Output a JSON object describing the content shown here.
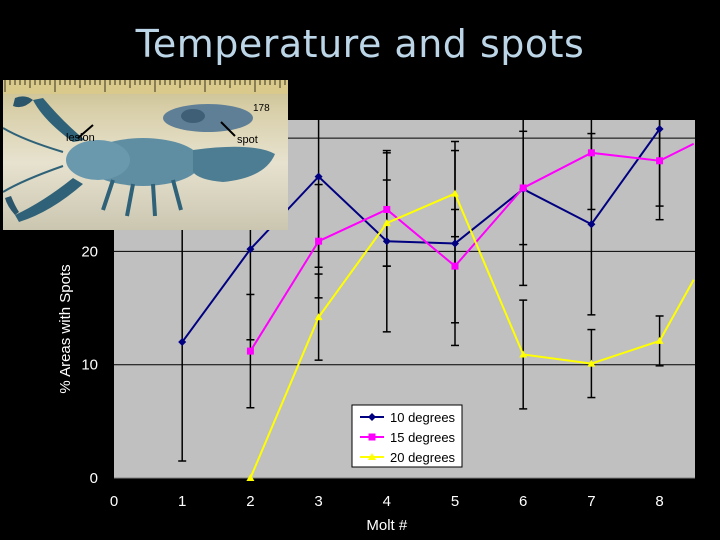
{
  "slide": {
    "title": "Temperature and spots"
  },
  "photo": {
    "lesion_label": "lesion",
    "spot_label": "spot",
    "ruler_number": "178"
  },
  "chart_data": {
    "type": "line",
    "title": "",
    "xlabel": "Molt #",
    "ylabel": "% Areas with Spots",
    "xlim": [
      0,
      8
    ],
    "ylim": [
      0,
      30
    ],
    "x_ticks": [
      "0",
      "1",
      "2",
      "3",
      "4",
      "5",
      "6",
      "7",
      "8"
    ],
    "y_ticks": [
      "0",
      "10",
      "20"
    ],
    "grid": "horizontal",
    "legend_position": "bottom-right",
    "colors": {
      "plot_background": "#c0c0c0",
      "gridline": "#000000"
    },
    "series": [
      {
        "name": "10 degrees",
        "color": "#000080",
        "marker": "diamond",
        "x": [
          1,
          2,
          3,
          4,
          5,
          6,
          7,
          8
        ],
        "values": [
          12.0,
          20.2,
          26.6,
          20.9,
          20.7,
          25.5,
          22.4,
          30.8
        ],
        "errors": [
          10.5,
          8.0,
          8.0,
          8.0,
          9.0,
          8.5,
          8.0,
          8.0
        ]
      },
      {
        "name": "15 degrees",
        "color": "#ff00ff",
        "marker": "square",
        "x": [
          2,
          3,
          4,
          5,
          6,
          7,
          8,
          8.5
        ],
        "values": [
          11.2,
          20.9,
          23.7,
          18.7,
          25.6,
          28.7,
          28.0,
          29.5
        ],
        "errors": [
          5.0,
          5.0,
          5.0,
          5.0,
          5.0,
          5.0,
          4.0,
          0
        ]
      },
      {
        "name": "20 degrees",
        "color": "#ffff00",
        "marker": "triangle",
        "x": [
          2,
          3,
          4,
          5,
          6,
          7,
          8,
          8.5
        ],
        "values": [
          0.0,
          14.2,
          22.5,
          25.1,
          10.9,
          10.1,
          12.1,
          17.5
        ],
        "errors": [
          0,
          3.8,
          3.8,
          3.8,
          4.8,
          3.0,
          2.2,
          0
        ]
      }
    ]
  }
}
